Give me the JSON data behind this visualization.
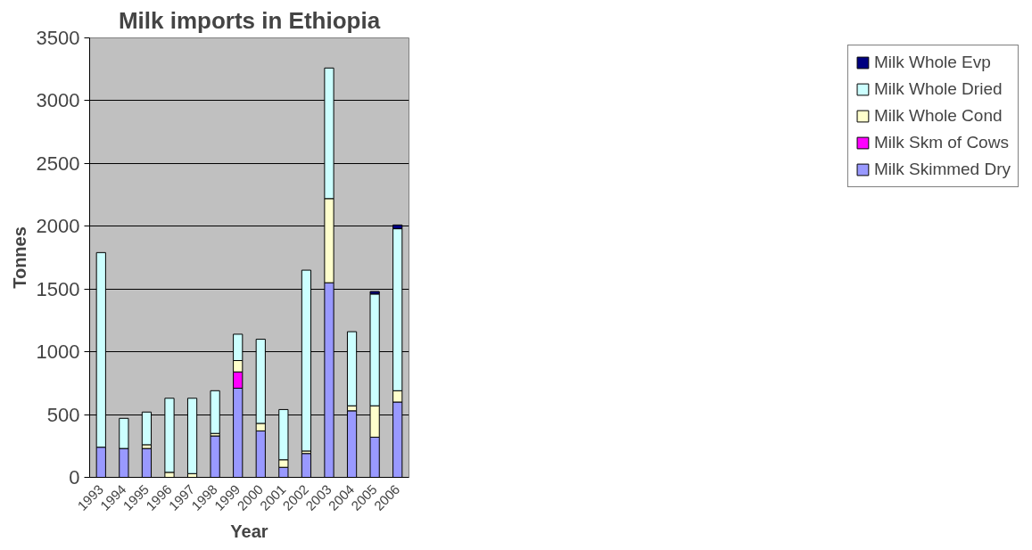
{
  "chart_data": {
    "type": "bar",
    "title": "Milk imports in Ethiopia",
    "xlabel": "Year",
    "ylabel": "Tonnes",
    "categories": [
      "1993",
      "1994",
      "1995",
      "1996",
      "1997",
      "1998",
      "1999",
      "2000",
      "2001",
      "2002",
      "2003",
      "2004",
      "2005",
      "2006"
    ],
    "stacked": true,
    "series": [
      {
        "name": "Milk Skimmed Dry",
        "color": "#9999ff",
        "values": [
          240,
          230,
          230,
          null,
          null,
          330,
          710,
          370,
          80,
          190,
          1550,
          530,
          320,
          600
        ]
      },
      {
        "name": "Milk Skm of Cows",
        "color": "#ff00ff",
        "values": [
          null,
          null,
          null,
          null,
          null,
          null,
          130,
          null,
          null,
          null,
          null,
          null,
          null,
          null
        ]
      },
      {
        "name": "Milk Whole Cond",
        "color": "#ffffcc",
        "values": [
          null,
          null,
          30,
          40,
          30,
          20,
          90,
          60,
          60,
          20,
          670,
          40,
          250,
          90
        ]
      },
      {
        "name": "Milk Whole Dried",
        "color": "#ccffff",
        "values": [
          1550,
          240,
          260,
          590,
          600,
          340,
          210,
          670,
          400,
          1440,
          1040,
          590,
          890,
          1290
        ]
      },
      {
        "name": "Milk Whole Evp",
        "color": "#000080",
        "values": [
          null,
          null,
          null,
          null,
          null,
          null,
          null,
          null,
          null,
          null,
          null,
          null,
          20,
          30
        ]
      }
    ],
    "ylim": [
      0,
      3500
    ],
    "yticks": [
      0,
      500,
      1000,
      1500,
      2000,
      2500,
      3000,
      3500
    ],
    "grid": "y",
    "legend": "right"
  }
}
